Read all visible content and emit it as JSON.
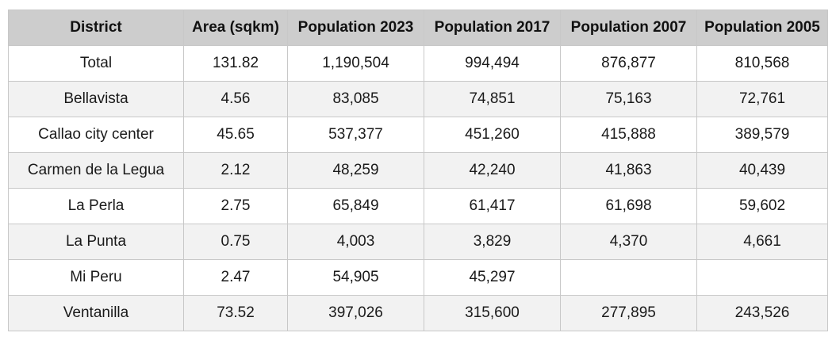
{
  "table": {
    "headers": [
      "District",
      "Area (sqkm)",
      "Population 2023",
      "Population 2017",
      "Population 2007",
      "Population 2005"
    ],
    "rows": [
      [
        "Total",
        "131.82",
        "1,190,504",
        "994,494",
        "876,877",
        "810,568"
      ],
      [
        "Bellavista",
        "4.56",
        "83,085",
        "74,851",
        "75,163",
        "72,761"
      ],
      [
        "Callao city center",
        "45.65",
        "537,377",
        "451,260",
        "415,888",
        "389,579"
      ],
      [
        "Carmen de la Legua",
        "2.12",
        "48,259",
        "42,240",
        "41,863",
        "40,439"
      ],
      [
        "La Perla",
        "2.75",
        "65,849",
        "61,417",
        "61,698",
        "59,602"
      ],
      [
        "La Punta",
        "0.75",
        "4,003",
        "3,829",
        "4,370",
        "4,661"
      ],
      [
        "Mi Peru",
        "2.47",
        "54,905",
        "45,297",
        "",
        ""
      ],
      [
        "Ventanilla",
        "73.52",
        "397,026",
        "315,600",
        "277,895",
        "243,526"
      ]
    ]
  }
}
